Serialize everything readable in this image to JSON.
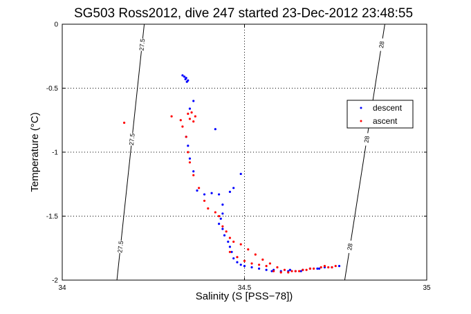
{
  "chart_data": {
    "type": "scatter",
    "title": "SG503 Ross2012, dive 247 started 23-Dec-2012 23:48:55",
    "xlabel": "Salinity (S [PSS−78])",
    "ylabel": "Temperature (°C)",
    "xlim": [
      34,
      35
    ],
    "ylim": [
      -2,
      0
    ],
    "xticks": [
      34,
      34.5,
      35
    ],
    "yticks": [
      0,
      -0.5,
      -1,
      -1.5,
      -2
    ],
    "xtick_labels": [
      "34",
      "34.5",
      "35"
    ],
    "ytick_labels": [
      "0",
      "-0.5",
      "-1",
      "-1.5",
      "-2"
    ],
    "grid": true,
    "legend_position": "right",
    "series": [
      {
        "name": "descent",
        "color": "#0000ff",
        "points": [
          [
            34.335,
            -0.41
          ],
          [
            34.34,
            -0.42
          ],
          [
            34.345,
            -0.44
          ],
          [
            34.338,
            -0.43
          ],
          [
            34.342,
            -0.45
          ],
          [
            34.33,
            -0.4
          ],
          [
            34.36,
            -0.6
          ],
          [
            34.42,
            -0.82
          ],
          [
            34.35,
            -0.66
          ],
          [
            34.34,
            -0.88
          ],
          [
            34.345,
            -0.95
          ],
          [
            34.35,
            -1.05
          ],
          [
            34.36,
            -1.15
          ],
          [
            34.37,
            -1.3
          ],
          [
            34.39,
            -1.33
          ],
          [
            34.41,
            -1.32
          ],
          [
            34.43,
            -1.33
          ],
          [
            34.46,
            -1.31
          ],
          [
            34.49,
            -1.17
          ],
          [
            34.47,
            -1.28
          ],
          [
            34.44,
            -1.41
          ],
          [
            34.44,
            -1.48
          ],
          [
            34.435,
            -1.52
          ],
          [
            34.43,
            -1.56
          ],
          [
            34.44,
            -1.6
          ],
          [
            34.445,
            -1.65
          ],
          [
            34.455,
            -1.7
          ],
          [
            34.46,
            -1.74
          ],
          [
            34.465,
            -1.78
          ],
          [
            34.47,
            -1.83
          ],
          [
            34.48,
            -1.86
          ],
          [
            34.49,
            -1.88
          ],
          [
            34.5,
            -1.89
          ],
          [
            34.52,
            -1.9
          ],
          [
            34.54,
            -1.91
          ],
          [
            34.56,
            -1.92
          ],
          [
            34.58,
            -1.92
          ],
          [
            34.6,
            -1.93
          ],
          [
            34.62,
            -1.93
          ],
          [
            34.64,
            -1.93
          ],
          [
            34.66,
            -1.92
          ],
          [
            34.68,
            -1.91
          ],
          [
            34.7,
            -1.91
          ],
          [
            34.72,
            -1.9
          ],
          [
            34.74,
            -1.9
          ],
          [
            34.76,
            -1.89
          ],
          [
            34.575,
            -1.93
          ],
          [
            34.625,
            -1.92
          ],
          [
            34.655,
            -1.93
          ],
          [
            34.705,
            -1.91
          ]
        ]
      },
      {
        "name": "ascent",
        "color": "#ff0000",
        "points": [
          [
            34.17,
            -0.77
          ],
          [
            34.3,
            -0.72
          ],
          [
            34.325,
            -0.75
          ],
          [
            34.33,
            -0.8
          ],
          [
            34.345,
            -0.7
          ],
          [
            34.35,
            -0.74
          ],
          [
            34.355,
            -0.69
          ],
          [
            34.36,
            -0.76
          ],
          [
            34.365,
            -0.72
          ],
          [
            34.34,
            -0.88
          ],
          [
            34.345,
            -1.0
          ],
          [
            34.35,
            -1.08
          ],
          [
            34.36,
            -1.18
          ],
          [
            34.375,
            -1.28
          ],
          [
            34.39,
            -1.38
          ],
          [
            34.4,
            -1.44
          ],
          [
            34.42,
            -1.47
          ],
          [
            34.43,
            -1.5
          ],
          [
            34.44,
            -1.58
          ],
          [
            34.45,
            -1.62
          ],
          [
            34.46,
            -1.67
          ],
          [
            34.47,
            -1.7
          ],
          [
            34.49,
            -1.72
          ],
          [
            34.51,
            -1.76
          ],
          [
            34.53,
            -1.8
          ],
          [
            34.55,
            -1.84
          ],
          [
            34.57,
            -1.87
          ],
          [
            34.59,
            -1.9
          ],
          [
            34.61,
            -1.92
          ],
          [
            34.63,
            -1.93
          ],
          [
            34.65,
            -1.93
          ],
          [
            34.67,
            -1.92
          ],
          [
            34.69,
            -1.91
          ],
          [
            34.71,
            -1.9
          ],
          [
            34.73,
            -1.9
          ],
          [
            34.75,
            -1.89
          ],
          [
            34.74,
            -1.9
          ],
          [
            34.72,
            -1.89
          ],
          [
            34.68,
            -1.91
          ],
          [
            34.66,
            -1.92
          ],
          [
            34.64,
            -1.93
          ],
          [
            34.62,
            -1.94
          ],
          [
            34.6,
            -1.94
          ],
          [
            34.58,
            -1.93
          ],
          [
            34.56,
            -1.89
          ],
          [
            34.54,
            -1.88
          ],
          [
            34.52,
            -1.87
          ],
          [
            34.5,
            -1.85
          ],
          [
            34.48,
            -1.82
          ],
          [
            34.46,
            -1.78
          ]
        ]
      }
    ],
    "contours": [
      {
        "label": "27.5",
        "points": [
          [
            34.225,
            0
          ],
          [
            34.15,
            -2
          ]
        ]
      },
      {
        "label": "28",
        "points": [
          [
            34.885,
            0
          ],
          [
            34.775,
            -2
          ]
        ]
      }
    ]
  }
}
